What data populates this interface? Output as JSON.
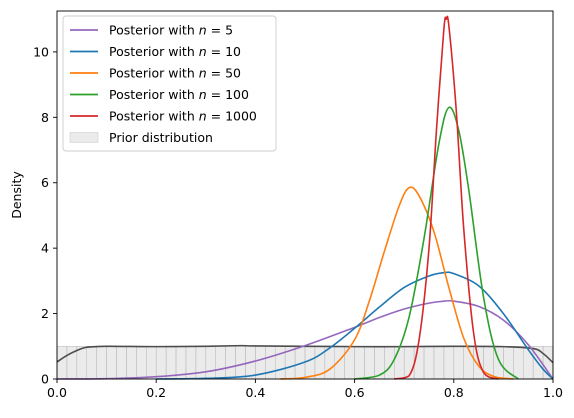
{
  "chart_data": {
    "type": "line",
    "title": "",
    "xlabel": "",
    "ylabel": "Density",
    "xlim": [
      0.0,
      1.0
    ],
    "ylim": [
      0,
      11.25
    ],
    "xticks": [
      "0.0",
      "0.2",
      "0.4",
      "0.6",
      "0.8",
      "1.0"
    ],
    "xtick_values": [
      0.0,
      0.2,
      0.4,
      0.6,
      0.8,
      1.0
    ],
    "yticks": [
      "0",
      "2",
      "4",
      "6",
      "8",
      "10"
    ],
    "ytick_values": [
      0,
      2,
      4,
      6,
      8,
      10
    ],
    "grid": false,
    "legend_placement": "top-left",
    "series": [
      {
        "name": "Posterior with n = 5",
        "legend_prefix": "Posterior with ",
        "legend_var": "n",
        "legend_suffix": " = 5",
        "color": "#9467bd",
        "x": [
          0.0,
          0.1,
          0.2,
          0.3,
          0.4,
          0.5,
          0.6,
          0.65,
          0.7,
          0.75,
          0.78,
          0.8,
          0.85,
          0.9,
          0.95,
          1.0
        ],
        "y": [
          0.0,
          0.01,
          0.07,
          0.22,
          0.55,
          1.02,
          1.58,
          1.88,
          2.14,
          2.32,
          2.38,
          2.38,
          2.22,
          1.8,
          1.05,
          0.0
        ]
      },
      {
        "name": "Posterior with n = 10",
        "legend_prefix": "Posterior with ",
        "legend_var": "n",
        "legend_suffix": " = 10",
        "color": "#1f77b4",
        "x": [
          0.2,
          0.3,
          0.4,
          0.5,
          0.55,
          0.6,
          0.65,
          0.7,
          0.75,
          0.78,
          0.8,
          0.85,
          0.9,
          0.95,
          0.98,
          1.0
        ],
        "y": [
          0.0,
          0.02,
          0.12,
          0.52,
          0.95,
          1.55,
          2.2,
          2.8,
          3.15,
          3.25,
          3.22,
          2.85,
          2.0,
          0.9,
          0.3,
          0.0
        ]
      },
      {
        "name": "Posterior with n = 50",
        "legend_prefix": "Posterior with ",
        "legend_var": "n",
        "legend_suffix": " = 50",
        "color": "#ff7f0e",
        "x": [
          0.45,
          0.5,
          0.55,
          0.6,
          0.63,
          0.66,
          0.69,
          0.71,
          0.73,
          0.76,
          0.79,
          0.82,
          0.85,
          0.88,
          0.92
        ],
        "y": [
          0.0,
          0.05,
          0.3,
          1.2,
          2.4,
          3.9,
          5.3,
          5.85,
          5.6,
          4.5,
          2.8,
          1.25,
          0.4,
          0.08,
          0.0
        ]
      },
      {
        "name": "Posterior with n = 100",
        "legend_prefix": "Posterior with ",
        "legend_var": "n",
        "legend_suffix": " = 100",
        "color": "#2ca02c",
        "x": [
          0.6,
          0.65,
          0.68,
          0.71,
          0.74,
          0.77,
          0.79,
          0.81,
          0.83,
          0.86,
          0.89,
          0.93
        ],
        "y": [
          0.0,
          0.12,
          0.6,
          1.9,
          4.3,
          7.2,
          8.3,
          7.6,
          5.8,
          2.5,
          0.6,
          0.0
        ]
      },
      {
        "name": "Posterior with n = 1000",
        "legend_prefix": "Posterior with ",
        "legend_var": "n",
        "legend_suffix": " = 1000",
        "color": "#d62728",
        "x": [
          0.68,
          0.71,
          0.73,
          0.75,
          0.765,
          0.78,
          0.785,
          0.79,
          0.805,
          0.82,
          0.84,
          0.86,
          0.89
        ],
        "y": [
          0.0,
          0.1,
          1.2,
          4.0,
          7.6,
          10.7,
          11.0,
          10.8,
          8.2,
          4.6,
          1.4,
          0.2,
          0.0
        ]
      }
    ],
    "prior": {
      "name": "Prior distribution",
      "fill_color": "#d3d3d3",
      "line_color": "#4d4d4d",
      "x": [
        0.0,
        0.02,
        0.04,
        0.06,
        0.1,
        0.2,
        0.3,
        0.37,
        0.4,
        0.5,
        0.6,
        0.7,
        0.8,
        0.9,
        0.96,
        0.98,
        1.0
      ],
      "y": [
        0.52,
        0.72,
        0.87,
        0.97,
        1.0,
        0.99,
        1.0,
        1.02,
        1.01,
        1.0,
        0.99,
        0.99,
        1.0,
        0.99,
        0.93,
        0.78,
        0.5
      ],
      "hist_value": 1.0
    }
  }
}
